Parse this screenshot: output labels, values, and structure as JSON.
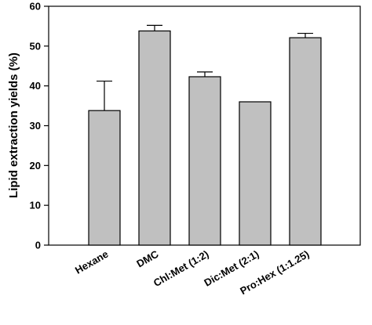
{
  "chart_data": {
    "type": "bar",
    "title": "",
    "xlabel": "",
    "ylabel": "Lipid extraction yields (%)",
    "ylim": [
      0,
      60
    ],
    "yticks": [
      0,
      10,
      20,
      30,
      40,
      50,
      60
    ],
    "categories": [
      "Hexane",
      "DMC",
      "Chl:Met (1:2)",
      "Dic:Met (2:1)",
      "Pro:Hex (1:1.25)"
    ],
    "values": [
      33.8,
      53.8,
      42.3,
      36.0,
      52.1
    ],
    "errors": [
      7.4,
      1.4,
      1.2,
      0,
      1.1
    ],
    "grid": false,
    "colors": {
      "bar_fill": "#c0c0c0",
      "bar_stroke": "#000000",
      "axis": "#000000",
      "background": "#ffffff"
    }
  }
}
